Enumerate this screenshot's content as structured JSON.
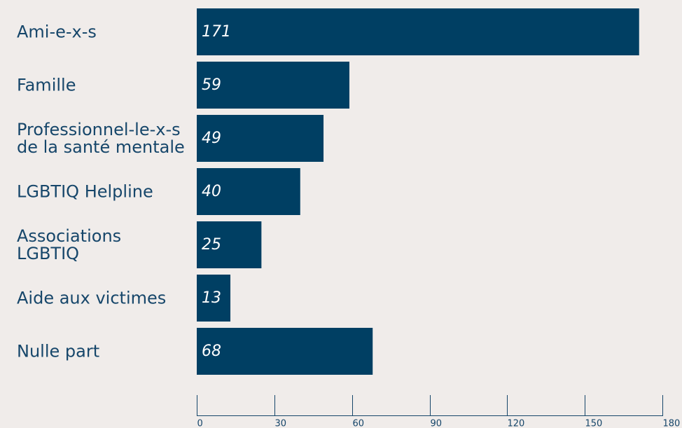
{
  "chart_data": {
    "type": "bar",
    "orientation": "horizontal",
    "categories": [
      [
        "Ami-e-x-s"
      ],
      [
        "Famille"
      ],
      [
        "Professionnel-le-x-s",
        "de la santé mentale"
      ],
      [
        "LGBTIQ Helpline"
      ],
      [
        "Associations",
        "LGBTIQ"
      ],
      [
        "Aide aux victimes"
      ],
      [
        "Nulle part"
      ]
    ],
    "values": [
      171,
      59,
      49,
      40,
      25,
      13,
      68
    ],
    "xlim": [
      0,
      180
    ],
    "xticks": [
      0,
      30,
      60,
      90,
      120,
      150,
      180
    ],
    "title": "",
    "xlabel": "",
    "ylabel": "",
    "grid": false,
    "bar_color": "#003f63",
    "text_color": "#16466a",
    "value_label_color": "#ffffff",
    "background": "#f0ecea"
  }
}
